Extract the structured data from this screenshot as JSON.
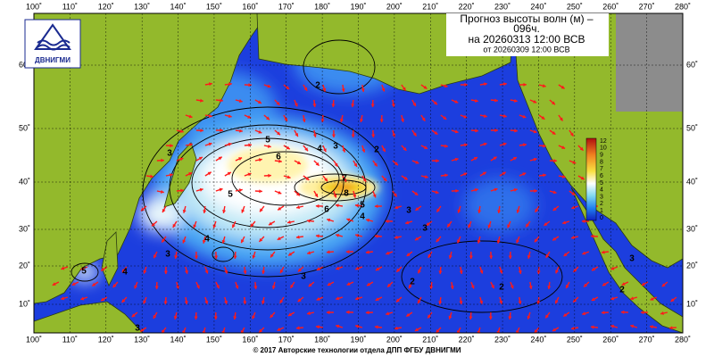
{
  "header": {
    "title": "Прогноз высоты волн (м) –",
    "title_cont": "096ч.",
    "valid": "на 20260313 12:00 ВСВ",
    "issued": "от 20260309 12:00 ВСВ"
  },
  "logo": {
    "text": "ДВНИГМИ"
  },
  "map": {
    "lon_labels": [
      "100˚",
      "110˚",
      "120˚",
      "130˚",
      "140˚",
      "150˚",
      "160˚",
      "170˚",
      "180˚",
      "190˚",
      "200˚",
      "210˚",
      "220˚",
      "230˚",
      "240˚",
      "250˚",
      "260˚",
      "270˚",
      "280˚"
    ],
    "lat_labels": [
      "60˚",
      "50˚",
      "40˚",
      "30˚",
      "20˚",
      "10˚"
    ],
    "contour_labels": [
      "5",
      "6",
      "4",
      "3",
      "2",
      "7",
      "8",
      "6",
      "5",
      "4",
      "3",
      "5",
      "4",
      "3",
      "4",
      "5",
      "3",
      "2",
      "3",
      "3",
      "2",
      "2",
      "3",
      "2",
      "3"
    ]
  },
  "colorbar": {
    "labels": [
      "12",
      "10",
      "9",
      "8",
      "7",
      "6",
      "5",
      "4",
      "3",
      "2",
      "1",
      "0"
    ]
  },
  "footer": "© 2017 Авторские технологии отдела ДПП ФГБУ ДВНИГМИ"
}
